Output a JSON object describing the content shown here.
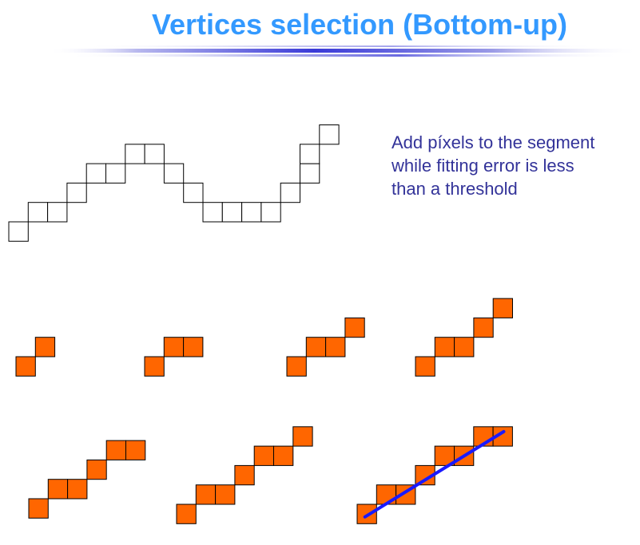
{
  "title": "Vertices selection (Bottom-up)",
  "description": {
    "lines": [
      "Add píxels to the segment",
      "while fitting error is less",
      "than a threshold"
    ]
  },
  "colors": {
    "title": "#3399ff",
    "text": "#333399",
    "pixel_fill": "#ff6600",
    "pixel_stroke": "#000000",
    "fit_line": "#1a1aff"
  },
  "curve": {
    "pixels": [
      [
        0,
        0
      ],
      [
        1,
        1
      ],
      [
        2,
        1
      ],
      [
        3,
        2
      ],
      [
        4,
        3
      ],
      [
        5,
        3
      ],
      [
        6,
        4
      ],
      [
        7,
        4
      ],
      [
        8,
        3
      ],
      [
        9,
        2
      ],
      [
        10,
        1
      ],
      [
        11,
        1
      ],
      [
        12,
        1
      ],
      [
        13,
        1
      ],
      [
        14,
        2
      ],
      [
        15,
        3
      ],
      [
        15,
        4
      ],
      [
        16,
        5
      ]
    ]
  },
  "steps": [
    {
      "name": "step-1",
      "pixels": [
        [
          0,
          0
        ],
        [
          1,
          1
        ]
      ]
    },
    {
      "name": "step-2",
      "pixels": [
        [
          0,
          0
        ],
        [
          1,
          1
        ],
        [
          2,
          1
        ]
      ]
    },
    {
      "name": "step-3",
      "pixels": [
        [
          0,
          0
        ],
        [
          1,
          1
        ],
        [
          2,
          1
        ],
        [
          3,
          2
        ]
      ]
    },
    {
      "name": "step-4",
      "pixels": [
        [
          0,
          0
        ],
        [
          1,
          1
        ],
        [
          2,
          1
        ],
        [
          3,
          2
        ],
        [
          4,
          3
        ]
      ]
    },
    {
      "name": "step-5",
      "pixels": [
        [
          0,
          0
        ],
        [
          1,
          1
        ],
        [
          2,
          1
        ],
        [
          3,
          2
        ],
        [
          4,
          3
        ],
        [
          5,
          3
        ]
      ]
    },
    {
      "name": "step-6",
      "pixels": [
        [
          0,
          0
        ],
        [
          1,
          1
        ],
        [
          2,
          1
        ],
        [
          3,
          2
        ],
        [
          4,
          3
        ],
        [
          5,
          3
        ],
        [
          6,
          4
        ]
      ]
    },
    {
      "name": "step-7",
      "pixels": [
        [
          0,
          0
        ],
        [
          1,
          1
        ],
        [
          2,
          1
        ],
        [
          3,
          2
        ],
        [
          4,
          3
        ],
        [
          5,
          3
        ],
        [
          6,
          4
        ],
        [
          7,
          4
        ]
      ],
      "fit_line": true
    }
  ]
}
